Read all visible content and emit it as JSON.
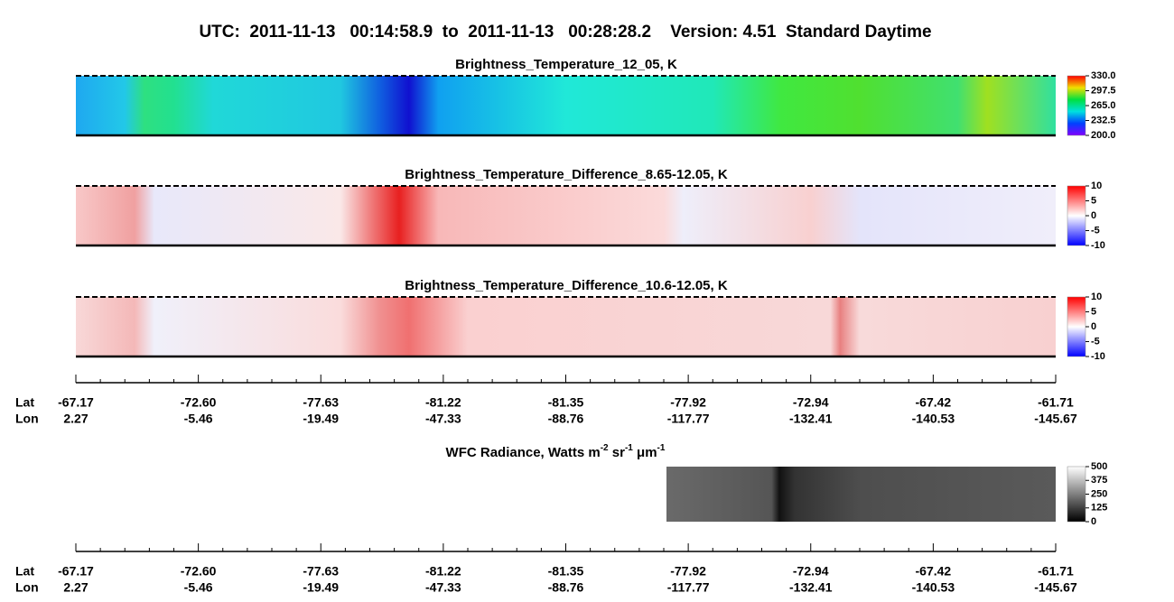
{
  "title": "UTC:  2011-11-13   00:14:58.9  to  2011-11-13   00:28:28.2    Version: 4.51  Standard Daytime",
  "panels": [
    {
      "title": "Brightness_Temperature_12_05, K",
      "colorbar_ticks": [
        "330.0",
        "297.5",
        "265.0",
        "232.5",
        "200.0"
      ]
    },
    {
      "title": "Brightness_Temperature_Difference_8.65-12.05, K",
      "colorbar_ticks": [
        "10",
        "5",
        "0",
        "-5",
        "-10"
      ]
    },
    {
      "title": "Brightness_Temperature_Difference_10.6-12.05, K",
      "colorbar_ticks": [
        "10",
        "5",
        "0",
        "-5",
        "-10"
      ]
    }
  ],
  "wfc": {
    "title_parts": [
      "WFC Radiance, Watts m",
      "-2",
      " sr",
      "-1",
      " μm",
      "-1"
    ],
    "colorbar_ticks": [
      "500",
      "375",
      "250",
      "125",
      "0"
    ]
  },
  "axes": [
    {
      "lat_label": "Lat",
      "lon_label": "Lon",
      "lat": [
        "-67.17",
        "-72.60",
        "-77.63",
        "-81.22",
        "-81.35",
        "-77.92",
        "-72.94",
        "-67.42",
        "-61.71"
      ],
      "lon": [
        "2.27",
        "-5.46",
        "-19.49",
        "-47.33",
        "-88.76",
        "-117.77",
        "-132.41",
        "-140.53",
        "-145.67"
      ]
    },
    {
      "lat_label": "Lat",
      "lon_label": "Lon",
      "lat": [
        "-67.17",
        "-72.60",
        "-77.63",
        "-81.22",
        "-81.35",
        "-77.92",
        "-72.94",
        "-67.42",
        "-61.71"
      ],
      "lon": [
        "2.27",
        "-5.46",
        "-19.49",
        "-47.33",
        "-88.76",
        "-117.77",
        "-132.41",
        "-140.53",
        "-145.67"
      ]
    }
  ]
}
